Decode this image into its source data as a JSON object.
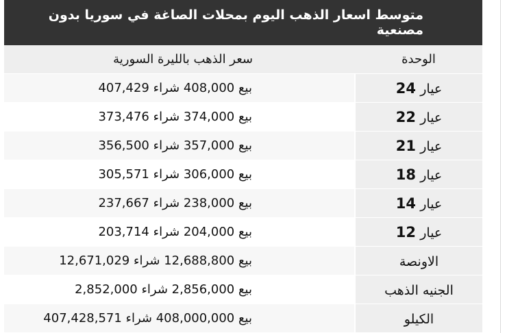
{
  "title": "متوسط اسعار الذهب اليوم بمحلات الصاغة في سوريا بدون مصنعية",
  "headers": {
    "unit": "الوحدة",
    "price": "سعر الذهب بالليرة السورية"
  },
  "rows": [
    {
      "unit_word": "عيار",
      "unit_num": "24",
      "price_text": "بيع 408,000 شراء 407,429"
    },
    {
      "unit_word": "عيار",
      "unit_num": "22",
      "price_text": "بيع 374,000 شراء 373,476"
    },
    {
      "unit_word": "عيار",
      "unit_num": "21",
      "price_text": "بيع 357,000 شراء 356,500"
    },
    {
      "unit_word": "عيار",
      "unit_num": "18",
      "price_text": "بيع 306,000 شراء 305,571"
    },
    {
      "unit_word": "عيار",
      "unit_num": "14",
      "price_text": "بيع 238,000 شراء 237,667"
    },
    {
      "unit_word": "عيار",
      "unit_num": "12",
      "price_text": "بيع 204,000 شراء 203,714"
    },
    {
      "unit_word": "الاونصة",
      "unit_num": "",
      "price_text": "بيع 12,688,800 شراء 12,671,029"
    },
    {
      "unit_word": "الجنيه الذهب",
      "unit_num": "",
      "price_text": "بيع 2,856,000 شراء 2,852,000"
    },
    {
      "unit_word": "الكيلو",
      "unit_num": "",
      "price_text": "بيع 408,000,000 شراء 407,428,571"
    }
  ],
  "colors": {
    "title_bg": "#333333",
    "unit_bg": "#eeeeee",
    "stripe_bg": "#f7f7f7"
  }
}
